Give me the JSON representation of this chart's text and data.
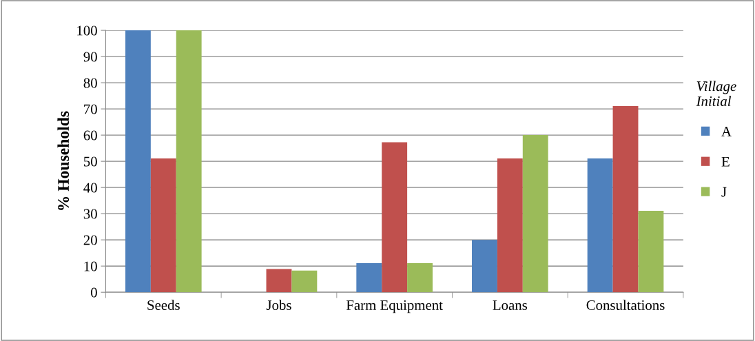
{
  "chart_data": {
    "type": "bar",
    "ylabel": "% Households",
    "legend_title": "Village\nInitial",
    "legend": "right",
    "categories": [
      "Seeds",
      "Jobs",
      "Farm Equipment",
      "Loans",
      "Consultations"
    ],
    "series": [
      {
        "name": "A",
        "color": "#4f81bd",
        "values": [
          100,
          0,
          11.1,
          20,
          51.1
        ]
      },
      {
        "name": "E",
        "color": "#c0504d",
        "values": [
          51.1,
          8.9,
          57.3,
          51.1,
          71.1
        ]
      },
      {
        "name": "J",
        "color": "#9bbb59",
        "values": [
          100,
          8.3,
          11.1,
          60,
          31.1
        ]
      }
    ],
    "ylim": [
      0,
      100
    ],
    "yticks": [
      0,
      10,
      20,
      30,
      40,
      50,
      60,
      70,
      80,
      90,
      100
    ],
    "grid": "y"
  }
}
